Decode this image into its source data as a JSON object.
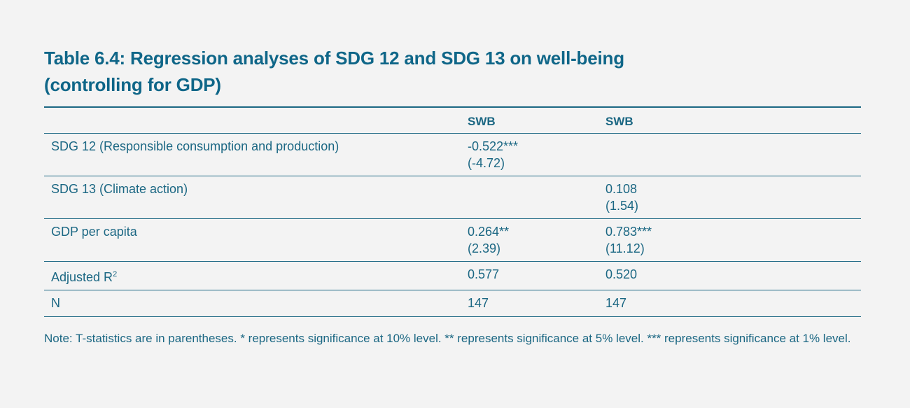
{
  "title": {
    "line1": "Table 6.4: Regression analyses of SDG 12 and SDG 13 on well-being",
    "line2": "(controlling for GDP)"
  },
  "table": {
    "headers": [
      "",
      "SWB",
      "SWB"
    ],
    "rows": [
      {
        "label": "SDG 12 (Responsible consumption and production)",
        "c1": "-0.522***",
        "c1t": "(-4.72)",
        "c2": "",
        "c2t": ""
      },
      {
        "label": "SDG 13 (Climate action)",
        "c1": "",
        "c1t": "",
        "c2": "0.108",
        "c2t": "(1.54)"
      },
      {
        "label": "GDP per capita",
        "c1": "0.264**",
        "c1t": "(2.39)",
        "c2": "0.783***",
        "c2t": "(11.12)"
      },
      {
        "label": "Adjusted R",
        "label_sup": "2",
        "c1": "0.577",
        "c1t": "",
        "c2": "0.520",
        "c2t": ""
      },
      {
        "label": "N",
        "c1": "147",
        "c1t": "",
        "c2": "147",
        "c2t": ""
      }
    ]
  },
  "note": "Note: T-statistics are in parentheses. * represents significance at 10% level. ** represents significance at 5% level. *** represents significance at 1% level."
}
